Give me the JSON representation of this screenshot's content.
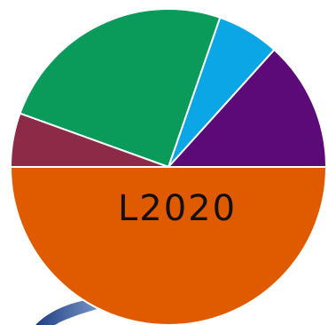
{
  "chart_data": {
    "type": "pie",
    "title": "",
    "slices": [
      {
        "label": "",
        "value": 13.3,
        "color": "#5c0a78"
      },
      {
        "label": "",
        "value": 6.4,
        "color": "#0aa6e6"
      },
      {
        "label": "",
        "value": 24.8,
        "color": "#0a9a5a"
      },
      {
        "label": "",
        "value": 5.5,
        "color": "#8c2a48"
      },
      {
        "label": "",
        "value": 50.0,
        "color": "#e05a00"
      }
    ],
    "start_angle_deg": 0,
    "direction": "counterclockwise",
    "annotation": "L2020"
  },
  "decor": {
    "swoosh_color_dark": "#1f3f82",
    "swoosh_color_light": "#a9c3ea"
  }
}
